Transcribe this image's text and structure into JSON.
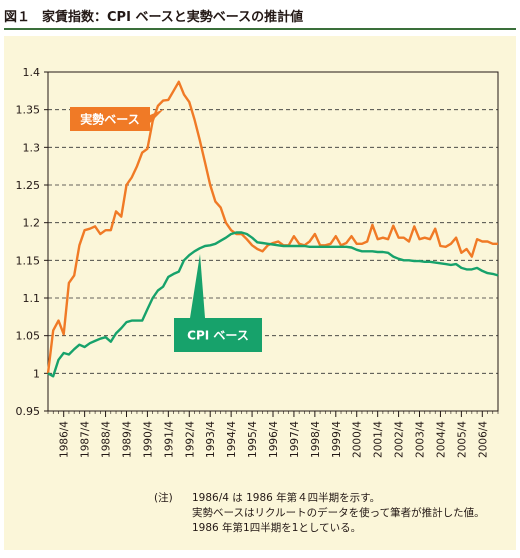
{
  "figure": {
    "number": "図１",
    "title": "家賃指数：CPI ベースと実勢ベースの推計値"
  },
  "note": {
    "lead": "(注)",
    "lines": [
      "1986/4 は 1986 年第４四半期を示す。",
      "実勢ベースはリクルートのデータを使って筆者が推計した値。",
      "1986 年第1四半期を1としている。"
    ]
  },
  "colors": {
    "jissei": "#f07a26",
    "cpi": "#17a26b",
    "panel_bg": "#fbf6d9",
    "grid": "#333333"
  },
  "chart_data": {
    "type": "line",
    "title": "家賃指数：CPI ベースと実勢ベースの推計値",
    "xlabel": "",
    "ylabel": "",
    "x_tick_labels": [
      "1986/4",
      "1987/4",
      "1988/4",
      "1989/4",
      "1990/4",
      "1991/4",
      "1992/4",
      "1993/4",
      "1994/4",
      "1995/4",
      "1996/4",
      "1997/4",
      "1998/4",
      "1999/4",
      "2000/4",
      "2001/4",
      "2002/4",
      "2003/4",
      "2004/4",
      "2005/4",
      "2006/4"
    ],
    "y_tick_labels": [
      "0.95",
      "1",
      "1.05",
      "1.1",
      "1.15",
      "1.2",
      "1.25",
      "1.3",
      "1.35",
      "1.4"
    ],
    "ylim": [
      0.95,
      1.4
    ],
    "grid": true,
    "x_start_quarter": "1986 Q1",
    "series": [
      {
        "name": "実勢ベース",
        "color": "#f07a26",
        "values": [
          1.0,
          1.057,
          1.07,
          1.052,
          1.12,
          1.13,
          1.17,
          1.19,
          1.192,
          1.195,
          1.185,
          1.19,
          1.19,
          1.215,
          1.208,
          1.25,
          1.26,
          1.275,
          1.293,
          1.298,
          1.335,
          1.355,
          1.362,
          1.363,
          1.375,
          1.387,
          1.37,
          1.36,
          1.337,
          1.31,
          1.28,
          1.25,
          1.228,
          1.22,
          1.2,
          1.19,
          1.185,
          1.185,
          1.178,
          1.17,
          1.165,
          1.162,
          1.17,
          1.173,
          1.175,
          1.17,
          1.17,
          1.182,
          1.172,
          1.17,
          1.175,
          1.185,
          1.17,
          1.17,
          1.172,
          1.182,
          1.17,
          1.173,
          1.182,
          1.172,
          1.172,
          1.175,
          1.197,
          1.178,
          1.18,
          1.178,
          1.196,
          1.18,
          1.18,
          1.175,
          1.195,
          1.178,
          1.18,
          1.178,
          1.192,
          1.169,
          1.168,
          1.172,
          1.18,
          1.16,
          1.165,
          1.155,
          1.178,
          1.175,
          1.175,
          1.172,
          1.172
        ]
      },
      {
        "name": "CPI ベース",
        "color": "#17a26b",
        "values": [
          1.0,
          0.996,
          1.018,
          1.027,
          1.025,
          1.032,
          1.038,
          1.035,
          1.04,
          1.043,
          1.046,
          1.048,
          1.042,
          1.053,
          1.06,
          1.068,
          1.07,
          1.07,
          1.07,
          1.085,
          1.1,
          1.11,
          1.115,
          1.128,
          1.132,
          1.135,
          1.15,
          1.157,
          1.162,
          1.166,
          1.169,
          1.17,
          1.172,
          1.176,
          1.18,
          1.185,
          1.187,
          1.187,
          1.185,
          1.18,
          1.174,
          1.173,
          1.172,
          1.171,
          1.17,
          1.169,
          1.169,
          1.169,
          1.169,
          1.169,
          1.168,
          1.168,
          1.168,
          1.168,
          1.168,
          1.168,
          1.168,
          1.168,
          1.167,
          1.164,
          1.162,
          1.162,
          1.162,
          1.161,
          1.161,
          1.16,
          1.155,
          1.152,
          1.15,
          1.15,
          1.149,
          1.149,
          1.148,
          1.148,
          1.147,
          1.146,
          1.145,
          1.144,
          1.145,
          1.14,
          1.138,
          1.138,
          1.14,
          1.136,
          1.133,
          1.132,
          1.13
        ]
      }
    ],
    "annotations": [
      "実勢ベース",
      "CPI ベース"
    ]
  }
}
